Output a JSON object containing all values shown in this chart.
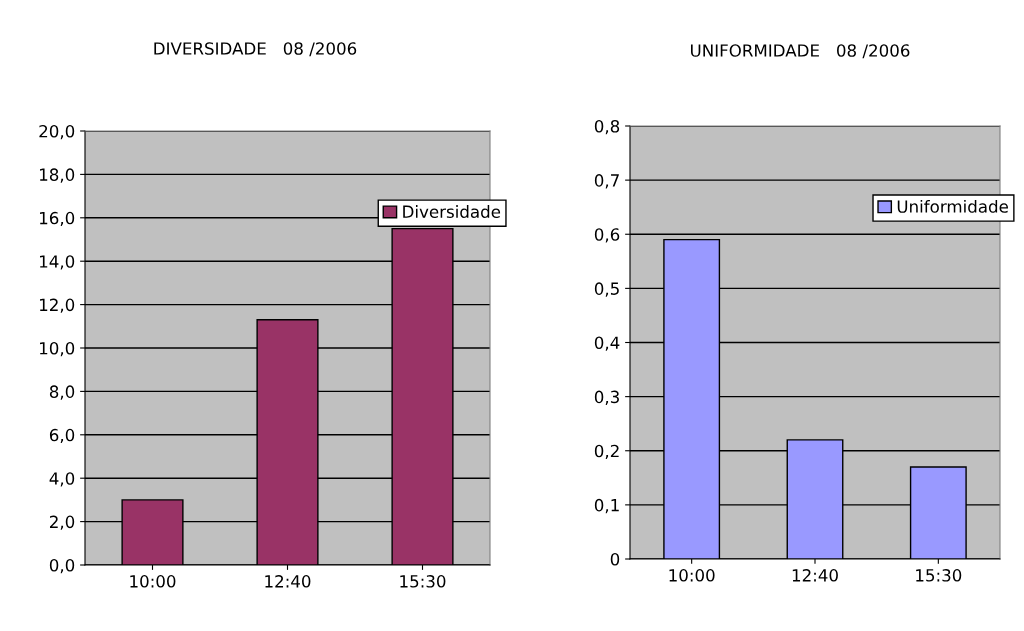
{
  "chart_data": [
    {
      "type": "bar",
      "title": "DIVERSIDADE   08 /2006",
      "categories": [
        "10:00",
        "12:40",
        "15:30"
      ],
      "series": [
        {
          "name": "Diversidade",
          "color": "#993366",
          "values": [
            3.0,
            11.3,
            15.5
          ]
        }
      ],
      "ylim": [
        0,
        20
      ],
      "yticks": [
        {
          "value": 0,
          "label": "0,0"
        },
        {
          "value": 2,
          "label": "2,0"
        },
        {
          "value": 4,
          "label": "4,0"
        },
        {
          "value": 6,
          "label": "6,0"
        },
        {
          "value": 8,
          "label": "8,0"
        },
        {
          "value": 10,
          "label": "10,0"
        },
        {
          "value": 12,
          "label": "12,0"
        },
        {
          "value": 14,
          "label": "14,0"
        },
        {
          "value": 16,
          "label": "16,0"
        },
        {
          "value": 18,
          "label": "18,0"
        },
        {
          "value": 20,
          "label": "20,0"
        }
      ],
      "grid": "y",
      "legend": "top right"
    },
    {
      "type": "bar",
      "title": "UNIFORMIDADE   08 /2006",
      "categories": [
        "10:00",
        "12:40",
        "15:30"
      ],
      "series": [
        {
          "name": "Uniformidade",
          "color": "#9999ff",
          "values": [
            0.59,
            0.22,
            0.17
          ]
        }
      ],
      "ylim": [
        0,
        0.8
      ],
      "yticks": [
        0,
        {
          "value": 0.1,
          "label": "0,1"
        },
        {
          "value": 0.2,
          "label": "0,2"
        },
        {
          "value": 0.3,
          "label": "0,3"
        },
        {
          "value": 0.4,
          "label": "0,4"
        },
        {
          "value": 0.5,
          "label": "0,5"
        },
        {
          "value": 0.6,
          "label": "0,6"
        },
        {
          "value": 0.7,
          "label": "0,7"
        },
        {
          "value": 0.8,
          "label": "0,8"
        }
      ],
      "grid": "y",
      "legend": "top right"
    }
  ]
}
